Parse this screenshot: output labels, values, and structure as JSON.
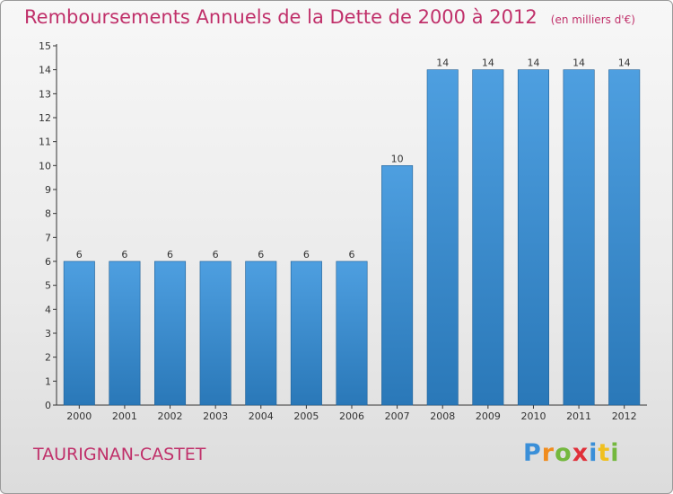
{
  "chart_data": {
    "type": "bar",
    "title": "Remboursements Annuels de la Dette de 2000 à 2012",
    "unit": "(en milliers d'€)",
    "categories": [
      "2000",
      "2001",
      "2002",
      "2003",
      "2004",
      "2005",
      "2006",
      "2007",
      "2008",
      "2009",
      "2010",
      "2011",
      "2012"
    ],
    "values": [
      6,
      6,
      6,
      6,
      6,
      6,
      6,
      10,
      14,
      14,
      14,
      14,
      14
    ],
    "data_labels": [
      "6",
      "6",
      "6",
      "6",
      "6",
      "6",
      "6",
      "10",
      "14",
      "14",
      "14",
      "14",
      "14"
    ],
    "xlabel": "",
    "ylabel": "",
    "ylim": [
      0,
      15
    ],
    "yticks": [
      "0",
      "1",
      "2",
      "3",
      "4",
      "5",
      "6",
      "7",
      "8",
      "9",
      "10",
      "11",
      "12",
      "13",
      "14",
      "15"
    ],
    "grid": false,
    "bar_color": "#4e9fe0",
    "bar_color_dark": "#2a78b8"
  },
  "footer": {
    "commune": "TAURIGNAN-CASTET",
    "logo_letters": [
      {
        "ch": "P",
        "color": "#3a8fd8"
      },
      {
        "ch": "r",
        "color": "#f08c1e"
      },
      {
        "ch": "o",
        "color": "#74b83e"
      },
      {
        "ch": "x",
        "color": "#e0303a"
      },
      {
        "ch": "i",
        "color": "#3a8fd8"
      },
      {
        "ch": "t",
        "color": "#f0c020"
      },
      {
        "ch": "i",
        "color": "#74b83e"
      }
    ]
  }
}
